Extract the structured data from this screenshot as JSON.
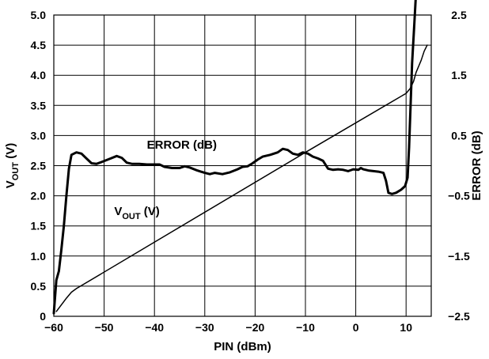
{
  "chart_data": {
    "type": "line",
    "title": "",
    "xlabel": "PIN (dBm)",
    "ylabel": {
      "main": "V",
      "sub": "OUT",
      "unit": " (V)"
    },
    "y2label": "ERROR (dB)",
    "xlim": [
      -60,
      15
    ],
    "ylim": [
      0,
      5
    ],
    "y2lim": [
      -2.5,
      2.5
    ],
    "grid": true,
    "legend": "none",
    "x_ticks": [
      -60,
      -50,
      -40,
      -30,
      -20,
      -10,
      0,
      10
    ],
    "x_tick_labels": [
      "−60",
      "−50",
      "−40",
      "−30",
      "−20",
      "−10",
      "0",
      "10"
    ],
    "y_ticks": [
      0,
      0.5,
      1,
      1.5,
      2,
      2.5,
      3,
      3.5,
      4,
      4.5,
      5
    ],
    "y_tick_labels": [
      "0",
      "0.5",
      "1.0",
      "1.5",
      "2.0",
      "2.5",
      "3.0",
      "3.5",
      "4.0",
      "4.5",
      "5.0"
    ],
    "y2_ticks": [
      2.5,
      1.5,
      0.5,
      -0.5,
      -1.5,
      -2.5
    ],
    "y2_tick_labels": [
      "2.5",
      "1.5",
      "0.5",
      "−0.5",
      "−1.5",
      "−2.5"
    ],
    "annotations": [
      {
        "main": "ERROR (dB)",
        "sub": "",
        "unit": "",
        "at": [
          -41.5,
          2.78
        ]
      },
      {
        "main": "V",
        "sub": "OUT",
        "unit": " (V)",
        "at": [
          -48,
          1.68
        ]
      }
    ],
    "series": [
      {
        "axis": "y2",
        "stroke": "#000000",
        "width": 3,
        "points": [
          [
            -60,
            -2.45
          ],
          [
            -59.5,
            -1.9
          ],
          [
            -59,
            -1.75
          ],
          [
            -58.5,
            -1.4
          ],
          [
            -58,
            -1
          ],
          [
            -57.5,
            -0.5
          ],
          [
            -57,
            -0.05
          ],
          [
            -56.5,
            0.18
          ],
          [
            -55.5,
            0.22
          ],
          [
            -54.5,
            0.2
          ],
          [
            -53.5,
            0.12
          ],
          [
            -52.5,
            0.04
          ],
          [
            -51.5,
            0.03
          ],
          [
            -50.5,
            0.06
          ],
          [
            -49,
            0.11
          ],
          [
            -47.5,
            0.16
          ],
          [
            -46.5,
            0.13
          ],
          [
            -45.5,
            0.05
          ],
          [
            -44.5,
            0.03
          ],
          [
            -43,
            0.03
          ],
          [
            -41.5,
            0.02
          ],
          [
            -40.5,
            0.02
          ],
          [
            -39,
            0.02
          ],
          [
            -38,
            -0.02
          ],
          [
            -36.5,
            -0.04
          ],
          [
            -35,
            -0.04
          ],
          [
            -34,
            -0.01
          ],
          [
            -33,
            -0.03
          ],
          [
            -31.5,
            -0.08
          ],
          [
            -30,
            -0.12
          ],
          [
            -29,
            -0.14
          ],
          [
            -28,
            -0.12
          ],
          [
            -26.5,
            -0.14
          ],
          [
            -25,
            -0.11
          ],
          [
            -23.5,
            -0.06
          ],
          [
            -22.5,
            -0.02
          ],
          [
            -21.5,
            -0.01
          ],
          [
            -20.5,
            0.04
          ],
          [
            -19.5,
            0.1
          ],
          [
            -18.5,
            0.15
          ],
          [
            -17,
            0.18
          ],
          [
            -15.5,
            0.22
          ],
          [
            -14.5,
            0.28
          ],
          [
            -13.5,
            0.26
          ],
          [
            -12.5,
            0.2
          ],
          [
            -11.5,
            0.18
          ],
          [
            -10.5,
            0.22
          ],
          [
            -9.5,
            0.2
          ],
          [
            -8.5,
            0.15
          ],
          [
            -7.5,
            0.12
          ],
          [
            -6.5,
            0.08
          ],
          [
            -5.5,
            -0.05
          ],
          [
            -4.5,
            -0.07
          ],
          [
            -3.5,
            -0.06
          ],
          [
            -2.5,
            -0.07
          ],
          [
            -1.5,
            -0.09
          ],
          [
            -0.5,
            -0.06
          ],
          [
            0.5,
            -0.07
          ],
          [
            1,
            -0.04
          ],
          [
            1.5,
            -0.06
          ],
          [
            2.5,
            -0.08
          ],
          [
            3.5,
            -0.09
          ],
          [
            4.5,
            -0.1
          ],
          [
            5.5,
            -0.12
          ],
          [
            6,
            -0.25
          ],
          [
            6.5,
            -0.45
          ],
          [
            7.2,
            -0.47
          ],
          [
            8,
            -0.45
          ],
          [
            9,
            -0.4
          ],
          [
            9.8,
            -0.34
          ],
          [
            10.3,
            -0.2
          ],
          [
            10.6,
            0.3
          ],
          [
            10.9,
            1
          ],
          [
            11.2,
            1.7
          ],
          [
            11.6,
            2.3
          ],
          [
            12,
            2.9
          ],
          [
            12.3,
            3.6
          ]
        ]
      },
      {
        "axis": "y",
        "stroke": "#000000",
        "width": 1.5,
        "points": [
          [
            -59.5,
            0.08
          ],
          [
            -57.5,
            0.3
          ],
          [
            -56.5,
            0.4
          ],
          [
            -55.5,
            0.46
          ],
          [
            -10,
            2.72
          ],
          [
            10,
            3.7
          ],
          [
            10.8,
            3.78
          ],
          [
            11.5,
            3.9
          ],
          [
            12,
            4.05
          ],
          [
            12.5,
            4.15
          ],
          [
            13,
            4.25
          ],
          [
            13.6,
            4.4
          ],
          [
            14.2,
            4.5
          ]
        ]
      }
    ]
  }
}
